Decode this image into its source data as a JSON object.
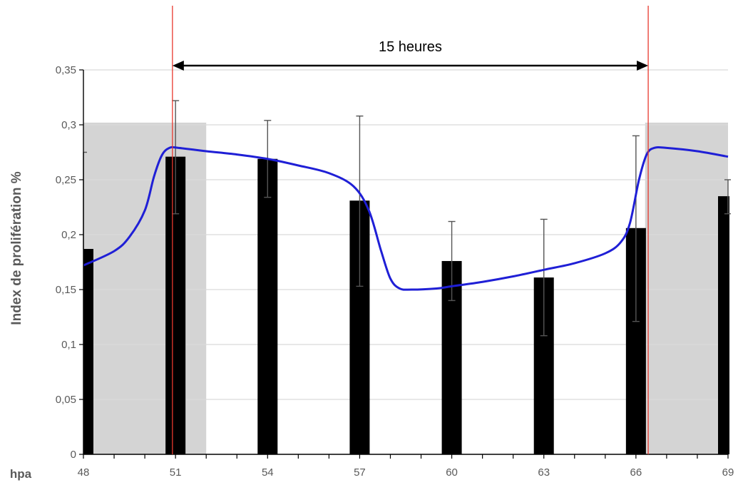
{
  "chart_data": {
    "type": "bar",
    "xlabel": "hpa",
    "ylabel": "Index de prolifération %",
    "xlim": [
      48,
      69
    ],
    "ylim": [
      0,
      0.35
    ],
    "x_ticks": [
      "48",
      "51",
      "54",
      "57",
      "60",
      "63",
      "66",
      "69"
    ],
    "y_ticks": [
      "0",
      "0,05",
      "0,1",
      "0,15",
      "0,2",
      "0,25",
      "0,3",
      "0,35"
    ],
    "grid": true,
    "bars": [
      {
        "x": 48,
        "value": 0.187,
        "err_low": null,
        "err_high": 0.275
      },
      {
        "x": 51,
        "value": 0.271,
        "err_low": 0.219,
        "err_high": 0.322
      },
      {
        "x": 54,
        "value": 0.269,
        "err_low": 0.234,
        "err_high": 0.304
      },
      {
        "x": 57,
        "value": 0.231,
        "err_low": 0.153,
        "err_high": 0.308
      },
      {
        "x": 60,
        "value": 0.176,
        "err_low": 0.14,
        "err_high": 0.212
      },
      {
        "x": 63,
        "value": 0.161,
        "err_low": 0.108,
        "err_high": 0.214
      },
      {
        "x": 66,
        "value": 0.206,
        "err_low": 0.121,
        "err_high": 0.29
      },
      {
        "x": 69,
        "value": 0.235,
        "err_low": 0.219,
        "err_high": 0.25
      }
    ],
    "curve": {
      "color": "#1f1fd6",
      "points": [
        [
          48,
          0.172
        ],
        [
          49,
          0.185
        ],
        [
          49.5,
          0.198
        ],
        [
          50,
          0.222
        ],
        [
          50.3,
          0.253
        ],
        [
          50.55,
          0.272
        ],
        [
          50.8,
          0.279
        ],
        [
          51.1,
          0.279
        ],
        [
          52,
          0.276
        ],
        [
          53,
          0.273
        ],
        [
          54,
          0.269
        ],
        [
          55,
          0.263
        ],
        [
          56,
          0.256
        ],
        [
          56.8,
          0.244
        ],
        [
          57.3,
          0.222
        ],
        [
          57.7,
          0.185
        ],
        [
          58,
          0.16
        ],
        [
          58.3,
          0.151
        ],
        [
          58.7,
          0.15
        ],
        [
          59.5,
          0.151
        ],
        [
          60,
          0.153
        ],
        [
          61,
          0.157
        ],
        [
          62,
          0.162
        ],
        [
          63,
          0.168
        ],
        [
          64,
          0.174
        ],
        [
          65,
          0.183
        ],
        [
          65.5,
          0.193
        ],
        [
          65.8,
          0.21
        ],
        [
          66.1,
          0.25
        ],
        [
          66.35,
          0.273
        ],
        [
          66.6,
          0.279
        ],
        [
          67,
          0.279
        ],
        [
          68,
          0.276
        ],
        [
          69,
          0.271
        ]
      ]
    },
    "shaded_regions": [
      {
        "x_start": 48,
        "x_end": 52,
        "y_top": 0.302,
        "color": "#d4d4d4"
      },
      {
        "x_start": 66.3,
        "x_end": 69,
        "y_top": 0.302,
        "color": "#d4d4d4"
      }
    ],
    "markers": [
      {
        "x": 50.9,
        "color": "#e8392e"
      },
      {
        "x": 66.4,
        "color": "#e8392e"
      }
    ],
    "annotation": {
      "text": "15 heures",
      "x_start": 50.9,
      "x_end": 66.4,
      "y": 0.35
    }
  }
}
